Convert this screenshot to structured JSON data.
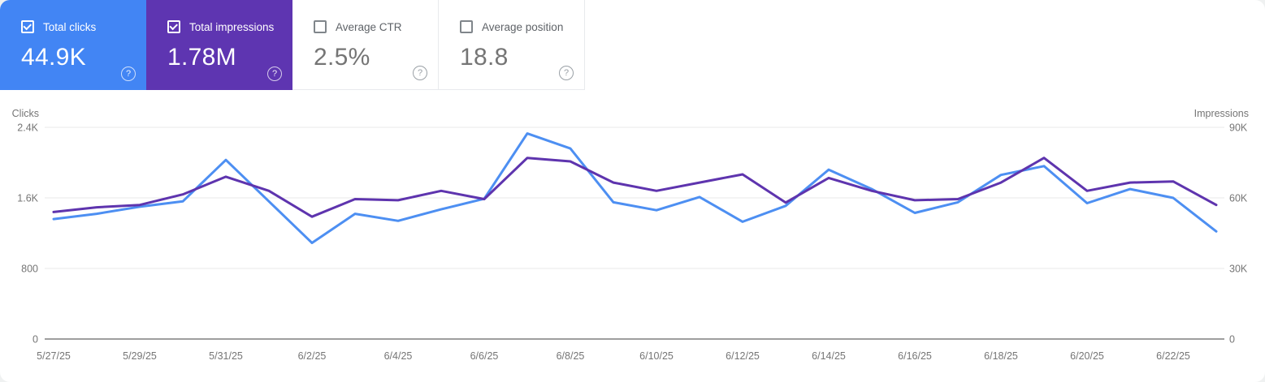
{
  "cards": [
    {
      "label": "Total clicks",
      "value": "44.9K",
      "checked": true,
      "bg": "#4285f4"
    },
    {
      "label": "Total impressions",
      "value": "1.78M",
      "checked": true,
      "bg": "#5e35b1"
    },
    {
      "label": "Average CTR",
      "value": "2.5%",
      "checked": false
    },
    {
      "label": "Average position",
      "value": "18.8",
      "checked": false
    }
  ],
  "icons": {
    "help": "question-mark-circle",
    "checked_checkbox": "checkmark",
    "unchecked_checkbox": "empty-square"
  },
  "colors": {
    "clicks_card": "#4285f4",
    "impressions_card": "#5e35b1",
    "clicks_line": "#4d8ff2",
    "impressions_line": "#5e34ae",
    "gridline": "#e8e8e8",
    "axis_line": "#9e9e9e",
    "axis_text": "#757575"
  },
  "chart_data": {
    "type": "line",
    "title": "",
    "grid": true,
    "legend_position": "none",
    "x": [
      "5/27/25",
      "5/28/25",
      "5/29/25",
      "5/30/25",
      "5/31/25",
      "6/1/25",
      "6/2/25",
      "6/3/25",
      "6/4/25",
      "6/5/25",
      "6/6/25",
      "6/7/25",
      "6/8/25",
      "6/9/25",
      "6/10/25",
      "6/11/25",
      "6/12/25",
      "6/13/25",
      "6/14/25",
      "6/15/25",
      "6/16/25",
      "6/17/25",
      "6/18/25",
      "6/19/25",
      "6/20/25",
      "6/21/25",
      "6/22/25",
      "6/23/25"
    ],
    "x_tick_labels": [
      "5/27/25",
      "5/29/25",
      "5/31/25",
      "6/2/25",
      "6/4/25",
      "6/6/25",
      "6/8/25",
      "6/10/25",
      "6/12/25",
      "6/14/25",
      "6/16/25",
      "6/18/25",
      "6/20/25",
      "6/22/25"
    ],
    "y_left": {
      "title": "Clicks",
      "max": 2400,
      "ticks": [
        {
          "value": 2400,
          "label": "2.4K"
        },
        {
          "value": 1600,
          "label": "1.6K"
        },
        {
          "value": 800,
          "label": "800"
        },
        {
          "value": 0,
          "label": "0"
        }
      ]
    },
    "y_right": {
      "title": "Impressions",
      "max": 90000,
      "ticks": [
        {
          "value": 90000,
          "label": "90K"
        },
        {
          "value": 60000,
          "label": "60K"
        },
        {
          "value": 30000,
          "label": "30K"
        },
        {
          "value": 0,
          "label": "0"
        }
      ]
    },
    "series": [
      {
        "name": "Total clicks",
        "axis": "left",
        "color": "#4d8ff2",
        "values": [
          1360,
          1420,
          1500,
          1560,
          2030,
          1560,
          1090,
          1420,
          1340,
          1470,
          1590,
          2330,
          2160,
          1550,
          1460,
          1610,
          1330,
          1510,
          1920,
          1700,
          1430,
          1550,
          1860,
          1960,
          1540,
          1700,
          1600,
          1220
        ]
      },
      {
        "name": "Total impressions",
        "axis": "right",
        "color": "#5e34ae",
        "values": [
          54000,
          56000,
          57000,
          61500,
          69000,
          63000,
          52000,
          59500,
          59000,
          63000,
          59500,
          77000,
          75500,
          66500,
          63000,
          66500,
          70000,
          58000,
          68500,
          63000,
          59000,
          59500,
          66500,
          77000,
          63000,
          66500,
          67000,
          57000
        ]
      }
    ]
  }
}
